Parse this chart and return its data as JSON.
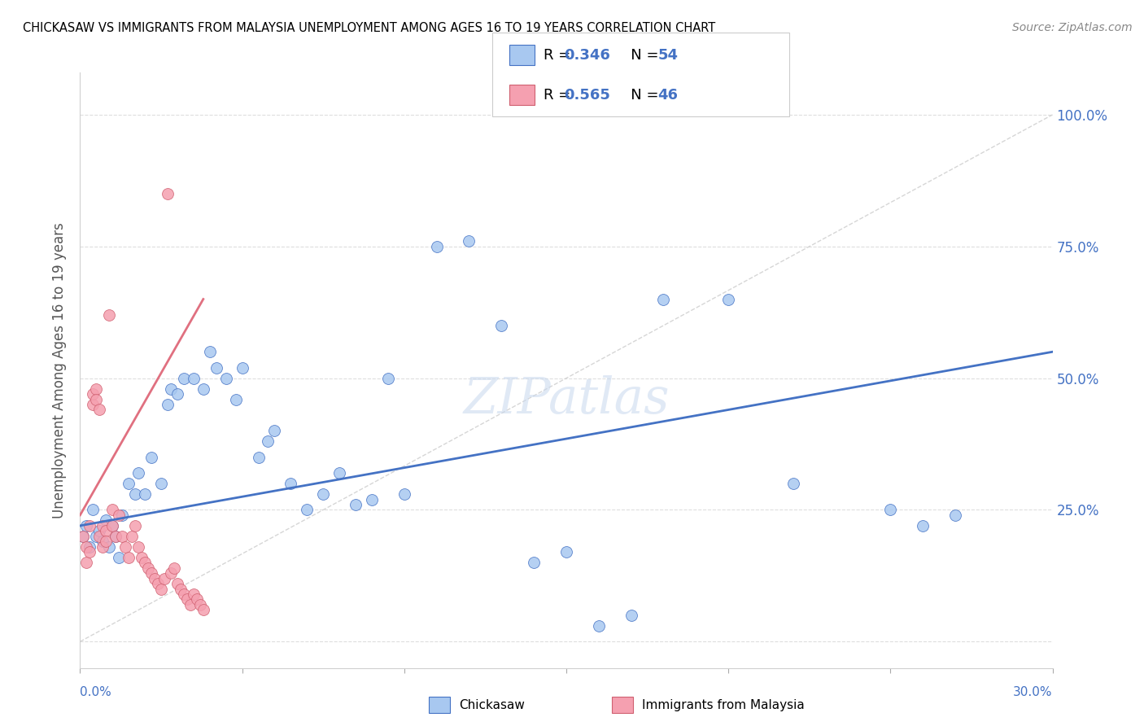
{
  "title": "CHICKASAW VS IMMIGRANTS FROM MALAYSIA UNEMPLOYMENT AMONG AGES 16 TO 19 YEARS CORRELATION CHART",
  "source": "Source: ZipAtlas.com",
  "ylabel": "Unemployment Among Ages 16 to 19 years",
  "ytick_labels": [
    "",
    "25.0%",
    "50.0%",
    "75.0%",
    "100.0%"
  ],
  "ytick_values": [
    0.0,
    0.25,
    0.5,
    0.75,
    1.0
  ],
  "xlim": [
    0.0,
    0.3
  ],
  "ylim": [
    -0.05,
    1.08
  ],
  "color_chickasaw": "#a8c8f0",
  "color_malaysia": "#f5a0b0",
  "color_chickasaw_line": "#4472c4",
  "color_malaysia_line": "#e07080",
  "color_reference_line": "#cccccc",
  "watermark": "ZIPatlas",
  "chickasaw_x": [
    0.001,
    0.002,
    0.003,
    0.004,
    0.005,
    0.006,
    0.007,
    0.008,
    0.009,
    0.01,
    0.011,
    0.012,
    0.013,
    0.015,
    0.017,
    0.018,
    0.02,
    0.022,
    0.025,
    0.027,
    0.028,
    0.03,
    0.032,
    0.035,
    0.038,
    0.04,
    0.042,
    0.045,
    0.048,
    0.05,
    0.055,
    0.058,
    0.06,
    0.065,
    0.07,
    0.075,
    0.08,
    0.085,
    0.09,
    0.095,
    0.1,
    0.11,
    0.12,
    0.13,
    0.14,
    0.15,
    0.16,
    0.17,
    0.18,
    0.2,
    0.22,
    0.25,
    0.26,
    0.27
  ],
  "chickasaw_y": [
    0.2,
    0.22,
    0.18,
    0.25,
    0.2,
    0.21,
    0.19,
    0.23,
    0.18,
    0.22,
    0.2,
    0.16,
    0.24,
    0.3,
    0.28,
    0.32,
    0.28,
    0.35,
    0.3,
    0.45,
    0.48,
    0.47,
    0.5,
    0.5,
    0.48,
    0.55,
    0.52,
    0.5,
    0.46,
    0.52,
    0.35,
    0.38,
    0.4,
    0.3,
    0.25,
    0.28,
    0.32,
    0.26,
    0.27,
    0.5,
    0.28,
    0.75,
    0.76,
    0.6,
    0.15,
    0.17,
    0.03,
    0.05,
    0.65,
    0.65,
    0.3,
    0.25,
    0.22,
    0.24
  ],
  "malaysia_x": [
    0.001,
    0.002,
    0.002,
    0.003,
    0.003,
    0.004,
    0.004,
    0.005,
    0.005,
    0.006,
    0.006,
    0.007,
    0.007,
    0.008,
    0.008,
    0.009,
    0.01,
    0.01,
    0.011,
    0.012,
    0.013,
    0.014,
    0.015,
    0.016,
    0.017,
    0.018,
    0.019,
    0.02,
    0.021,
    0.022,
    0.023,
    0.024,
    0.025,
    0.026,
    0.027,
    0.028,
    0.029,
    0.03,
    0.031,
    0.032,
    0.033,
    0.034,
    0.035,
    0.036,
    0.037,
    0.038
  ],
  "malaysia_y": [
    0.2,
    0.18,
    0.15,
    0.17,
    0.22,
    0.45,
    0.47,
    0.48,
    0.46,
    0.44,
    0.2,
    0.22,
    0.18,
    0.21,
    0.19,
    0.62,
    0.25,
    0.22,
    0.2,
    0.24,
    0.2,
    0.18,
    0.16,
    0.2,
    0.22,
    0.18,
    0.16,
    0.15,
    0.14,
    0.13,
    0.12,
    0.11,
    0.1,
    0.12,
    0.85,
    0.13,
    0.14,
    0.11,
    0.1,
    0.09,
    0.08,
    0.07,
    0.09,
    0.08,
    0.07,
    0.06
  ],
  "chickasaw_line_x": [
    0.0,
    0.3
  ],
  "chickasaw_line_y": [
    0.22,
    0.55
  ],
  "malaysia_line_x": [
    0.0,
    0.038
  ],
  "malaysia_line_y": [
    0.24,
    0.65
  ]
}
